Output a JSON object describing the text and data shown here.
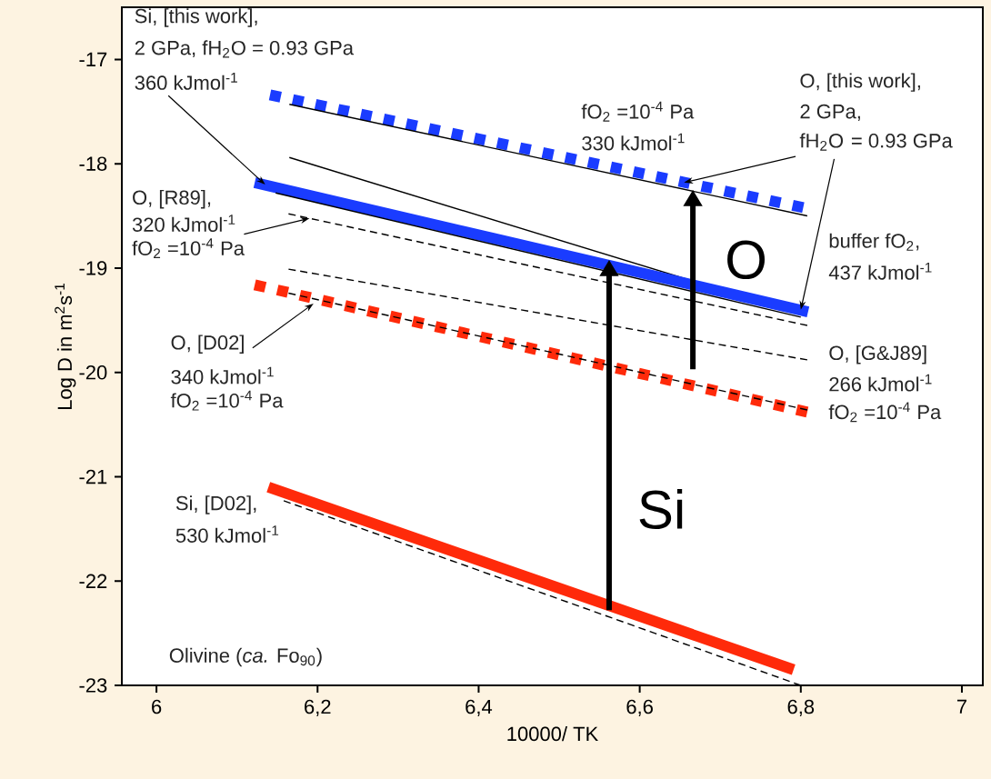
{
  "chart_data": {
    "type": "line",
    "xlabel": "10000/ TK",
    "ylabel": "Log D in m$^{2}$s$^{-1}$",
    "xlim": [
      5.957,
      7.026
    ],
    "ylim": [
      -23,
      -16.5
    ],
    "xticks": [
      6,
      {
        "value": 6.2,
        "label": "6,2"
      },
      {
        "value": 6.4,
        "label": "6,4"
      },
      {
        "value": 6.6,
        "label": "6,6"
      },
      {
        "value": 6.8,
        "label": "6,8"
      },
      7
    ],
    "yticks": [
      -23,
      -22,
      -21,
      -20,
      -19,
      -18,
      -17
    ],
    "series": [
      {
        "color": "#1a3cff",
        "line_style": "dotted",
        "x": [
          6.141,
          6.803
        ],
        "values": [
          -17.34,
          -18.42
        ]
      },
      {
        "color": "#000000",
        "line_style": "solid",
        "x": [
          6.165,
          6.808
        ],
        "values": [
          -17.43,
          -18.5
        ]
      },
      {
        "color": "#000000",
        "line_style": "solid",
        "x": [
          6.165,
          6.8
        ],
        "values": [
          -17.94,
          -19.44
        ]
      },
      {
        "color": "#1a3cff",
        "line_style": "solid",
        "x": [
          6.122,
          6.809
        ],
        "values": [
          -18.18,
          -19.42
        ]
      },
      {
        "color": "#000000",
        "line_style": "solid",
        "x": [
          6.148,
          6.8
        ],
        "values": [
          -18.28,
          -19.47
        ]
      },
      {
        "color": "#000000",
        "line_style": "dashed",
        "x": [
          6.164,
          6.808
        ],
        "values": [
          -18.48,
          -19.55
        ]
      },
      {
        "color": "#000000",
        "line_style": "dashed",
        "x": [
          6.164,
          6.808
        ],
        "values": [
          -19.01,
          -19.88
        ]
      },
      {
        "color": "#ff2a0a",
        "line_style": "dotted",
        "x": [
          6.122,
          6.808
        ],
        "values": [
          -19.16,
          -20.38
        ]
      },
      {
        "color": "#000000",
        "line_style": "dashed",
        "x": [
          6.164,
          6.808
        ],
        "values": [
          -19.24,
          -20.36
        ]
      },
      {
        "color": "#000000",
        "line_style": "dashed",
        "x": [
          6.158,
          6.8
        ],
        "values": [
          -21.23,
          -23.0
        ]
      },
      {
        "color": "#ff2a0a",
        "line_style": "solid",
        "x": [
          6.139,
          6.791
        ],
        "values": [
          -21.1,
          -22.85
        ]
      }
    ],
    "annotations": [
      "Si, [this work],",
      "2 GPa, fH$_{2}$O = 0.93 GPa",
      {
        "text": "360 kJmol$^{-1}$",
        "x": 6.135,
        "y": -18.2
      },
      "fO$_{2}$ =10$^{-4}$ Pa",
      "330 kJmol$^{-1}$",
      "O, [this work],",
      "2 GPa,",
      {
        "text": "fH$_{2}$O",
        "x": 6.655,
        "y": -18.18
      },
      {
        "text": "= 0.93 GPa",
        "x": 6.8,
        "y": -19.4
      },
      "buffer fO$_{2}$,",
      "437 kJmol$^{-1}$",
      "O, [R89],",
      {
        "text": "320 kJmol$^{-1}$",
        "x": 6.19,
        "y": -18.523
      },
      "fO$_{2}$ =10$^{-4}$ Pa",
      {
        "text": "O, [D02]",
        "x": 6.195,
        "y": -19.34
      },
      "340 kJmol$^{-1}$",
      "fO$_{2}$ =10$^{-4}$ Pa",
      "O, [G&J89]",
      "266 kJmol$^{-1}$",
      "fO$_{2}$ =10$^{-4}$ Pa",
      "Si, [D02],",
      "530 kJmol$^{-1}$",
      "Olivine (*ca.* Fo$_{90}$)",
      "O",
      "Si"
    ]
  }
}
